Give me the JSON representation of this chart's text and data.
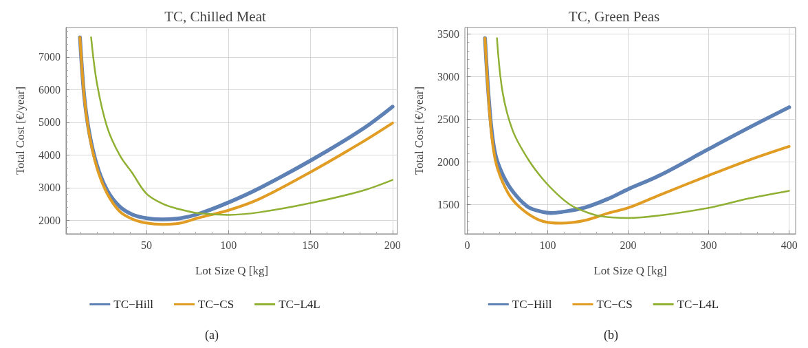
{
  "chart_data": [
    {
      "type": "line",
      "title": "TC, Chilled Meat",
      "xlabel": "Lot Size Q [kg]",
      "ylabel": "Total Cost [€/year]",
      "annotations": [
        "(a)"
      ],
      "xlim": [
        1,
        203
      ],
      "xticks": [
        50,
        100,
        150,
        200
      ],
      "ylim": [
        1590,
        7900
      ],
      "yticks": [
        2000,
        3000,
        4000,
        5000,
        6000,
        7000
      ],
      "grid": true,
      "legend": "bottom",
      "marker": "none",
      "line_style": "solid",
      "series": [
        {
          "name": "TC−Hill",
          "color": "#5e81b5",
          "x": [
            9.5,
            12.1,
            15.2,
            19.9,
            26.1,
            33.8,
            41.5,
            50,
            60,
            71,
            81.8,
            100,
            119,
            150,
            181,
            200
          ],
          "values": [
            7600,
            5800,
            4680,
            3680,
            2920,
            2420,
            2180,
            2070,
            2030,
            2070,
            2200,
            2550,
            2990,
            3830,
            4770,
            5480
          ]
        },
        {
          "name": "TC−CS",
          "color": "#e19c24",
          "x": [
            9.5,
            12.1,
            15.2,
            19.9,
            26.1,
            33.8,
            41.5,
            50,
            60,
            71,
            81.8,
            100,
            119,
            150,
            181,
            200
          ],
          "values": [
            7600,
            5790,
            4620,
            3600,
            2820,
            2270,
            2040,
            1920,
            1880,
            1920,
            2080,
            2310,
            2660,
            3480,
            4380,
            4980
          ]
        },
        {
          "name": "TC−L4L",
          "color": "#8fb032",
          "x": [
            16.3,
            19.9,
            26.1,
            33.8,
            41.5,
            50,
            60,
            71,
            81.8,
            100,
            119,
            150,
            181,
            200
          ],
          "values": [
            7600,
            6180,
            4850,
            3990,
            3440,
            2820,
            2510,
            2330,
            2220,
            2170,
            2250,
            2530,
            2900,
            3240
          ]
        }
      ]
    },
    {
      "type": "line",
      "title": "TC, Green Peas",
      "xlabel": "Lot Size Q [kg]",
      "ylabel": "Total Cost [€/year]",
      "annotations": [
        "(b)"
      ],
      "xlim": [
        -3,
        408
      ],
      "xticks": [
        0,
        100,
        200,
        300,
        400
      ],
      "ylim": [
        1155,
        3575
      ],
      "yticks": [
        1500,
        2000,
        2500,
        3000,
        3500
      ],
      "grid": true,
      "legend": "bottom",
      "marker": "none",
      "line_style": "solid",
      "series": [
        {
          "name": "TC−Hill",
          "color": "#5e81b5",
          "x": [
            22,
            28.3,
            34.6,
            44,
            56.7,
            75.6,
            94.5,
            104,
            116.5,
            145,
            176,
            200,
            239,
            300,
            350,
            400
          ],
          "values": [
            3450,
            2560,
            2100,
            1850,
            1650,
            1470,
            1410,
            1400,
            1410,
            1460,
            1570,
            1680,
            1840,
            2150,
            2400,
            2640
          ]
        },
        {
          "name": "TC−CS",
          "color": "#e19c24",
          "x": [
            22,
            28.3,
            34.6,
            44,
            56.7,
            75.6,
            94.5,
            116.5,
            145,
            176,
            200,
            239,
            300,
            350,
            400
          ],
          "values": [
            3450,
            2510,
            2030,
            1760,
            1550,
            1390,
            1300,
            1280,
            1310,
            1400,
            1460,
            1610,
            1840,
            2020,
            2180
          ]
        },
        {
          "name": "TC−L4L",
          "color": "#8fb032",
          "x": [
            36.9,
            44,
            56.7,
            75.6,
            94.5,
            113,
            129,
            145,
            166,
            200,
            239,
            300,
            350,
            400
          ],
          "values": [
            3450,
            2810,
            2360,
            2030,
            1790,
            1610,
            1490,
            1420,
            1360,
            1340,
            1370,
            1460,
            1570,
            1660
          ]
        }
      ]
    }
  ]
}
